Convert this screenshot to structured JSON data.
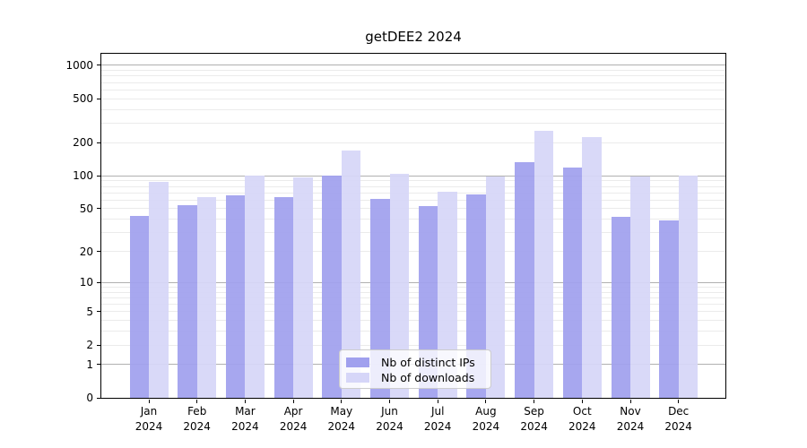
{
  "chart_data": {
    "type": "bar",
    "title": "getDEE2 2024",
    "categories": [
      "Jan",
      "Feb",
      "Mar",
      "Apr",
      "May",
      "Jun",
      "Jul",
      "Aug",
      "Sep",
      "Oct",
      "Nov",
      "Dec"
    ],
    "x_year": "2024",
    "series": [
      {
        "name": "Nb of distinct IPs",
        "key": "distinct-ips",
        "color": "#a0a0ee",
        "values": [
          43,
          54,
          66,
          64,
          100,
          62,
          53,
          68,
          134,
          118,
          42,
          39
        ]
      },
      {
        "name": "Nb of downloads",
        "key": "downloads",
        "color": "#d6d6f8",
        "values": [
          88,
          64,
          100,
          97,
          170,
          105,
          72,
          98,
          255,
          225,
          98,
          100
        ]
      }
    ],
    "y_scale": "log1p",
    "y_axis_max": 1274,
    "ylim": [
      0,
      1274
    ],
    "y_ticks": [
      0,
      1,
      2,
      5,
      10,
      20,
      50,
      100,
      200,
      500,
      1000
    ],
    "y_major_gridlines": [
      1,
      10,
      100,
      1000
    ],
    "y_minor_gridlines": [
      2,
      3,
      4,
      5,
      6,
      7,
      8,
      9,
      20,
      30,
      40,
      50,
      60,
      70,
      80,
      90,
      200,
      300,
      400,
      500,
      600,
      700,
      800,
      900
    ],
    "grid": true,
    "legend_position": "lower center",
    "xlabel": "",
    "ylabel": ""
  }
}
